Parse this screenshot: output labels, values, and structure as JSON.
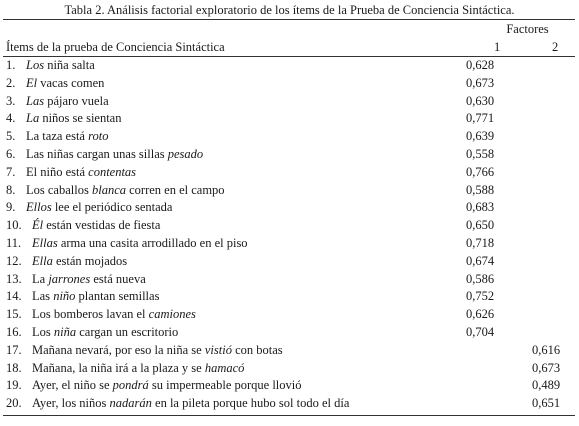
{
  "table": {
    "caption": "Tabla 2. Análisis factorial exploratorio de los ítems de la Prueba de Conciencia Sintáctica.",
    "factors_header": "Factores",
    "items_header": "Ítems de la prueba de Conciencia Sintáctica",
    "factor1_header": "1",
    "factor2_header": "2",
    "rows": [
      {
        "num": "1.",
        "pre": "",
        "it": "Los",
        "post": " niña salta",
        "f1": "0,628",
        "f2": ""
      },
      {
        "num": "2.",
        "pre": "",
        "it": "El",
        "post": " vacas comen",
        "f1": "0,673",
        "f2": ""
      },
      {
        "num": "3.",
        "pre": "",
        "it": "Las",
        "post": " pájaro vuela",
        "f1": "0,630",
        "f2": ""
      },
      {
        "num": "4.",
        "pre": "",
        "it": "La",
        "post": " niños se sientan",
        "f1": "0,771",
        "f2": ""
      },
      {
        "num": "5.",
        "pre": "La taza está ",
        "it": "roto",
        "post": "",
        "f1": "0,639",
        "f2": ""
      },
      {
        "num": "6.",
        "pre": "Las niñas cargan unas sillas ",
        "it": "pesado",
        "post": "",
        "f1": "0,558",
        "f2": ""
      },
      {
        "num": "7.",
        "pre": "El niño está ",
        "it": "contentas",
        "post": "",
        "f1": "0,766",
        "f2": ""
      },
      {
        "num": "8.",
        "pre": "Los caballos ",
        "it": "blanca",
        "post": " corren en el campo",
        "f1": "0,588",
        "f2": ""
      },
      {
        "num": "9.",
        "pre": "",
        "it": "Ellos",
        "post": " lee el periódico sentada",
        "f1": "0,683",
        "f2": ""
      },
      {
        "num": "10.",
        "pre": "",
        "it": "Él",
        "post": " están vestidas de fiesta",
        "f1": "0,650",
        "f2": ""
      },
      {
        "num": "11.",
        "pre": "",
        "it": "Ellas",
        "post": " arma una casita arrodillado en el piso",
        "f1": "0,718",
        "f2": ""
      },
      {
        "num": "12.",
        "pre": "",
        "it": "Ella",
        "post": " están mojados",
        "f1": "0,674",
        "f2": ""
      },
      {
        "num": "13.",
        "pre": "La ",
        "it": "jarrones",
        "post": " está nueva",
        "f1": "0,586",
        "f2": ""
      },
      {
        "num": "14.",
        "pre": "Las ",
        "it": "niño",
        "post": " plantan semillas",
        "f1": "0,752",
        "f2": ""
      },
      {
        "num": "15.",
        "pre": "Los bomberos lavan el ",
        "it": "camiones",
        "post": "",
        "f1": "0,626",
        "f2": ""
      },
      {
        "num": "16.",
        "pre": "Los ",
        "it": "niña",
        "post": " cargan un escritorio",
        "f1": "0,704",
        "f2": ""
      },
      {
        "num": "17.",
        "pre": "Mañana nevará, por eso la niña se ",
        "it": "vistió",
        "post": " con botas",
        "f1": "",
        "f2": "0,616"
      },
      {
        "num": "18.",
        "pre": "Mañana, la niña irá a la plaza y se ",
        "it": "hamacó",
        "post": "",
        "f1": "",
        "f2": "0,673"
      },
      {
        "num": "19.",
        "pre": "Ayer, el niño se ",
        "it": "pondrá",
        "post": " su impermeable porque llovió",
        "f1": "",
        "f2": "0,489"
      },
      {
        "num": "20.",
        "pre": "Ayer, los niños ",
        "it": "nadarán",
        "post": " en la pileta porque hubo sol todo el día",
        "f1": "",
        "f2": "0,651"
      }
    ]
  }
}
